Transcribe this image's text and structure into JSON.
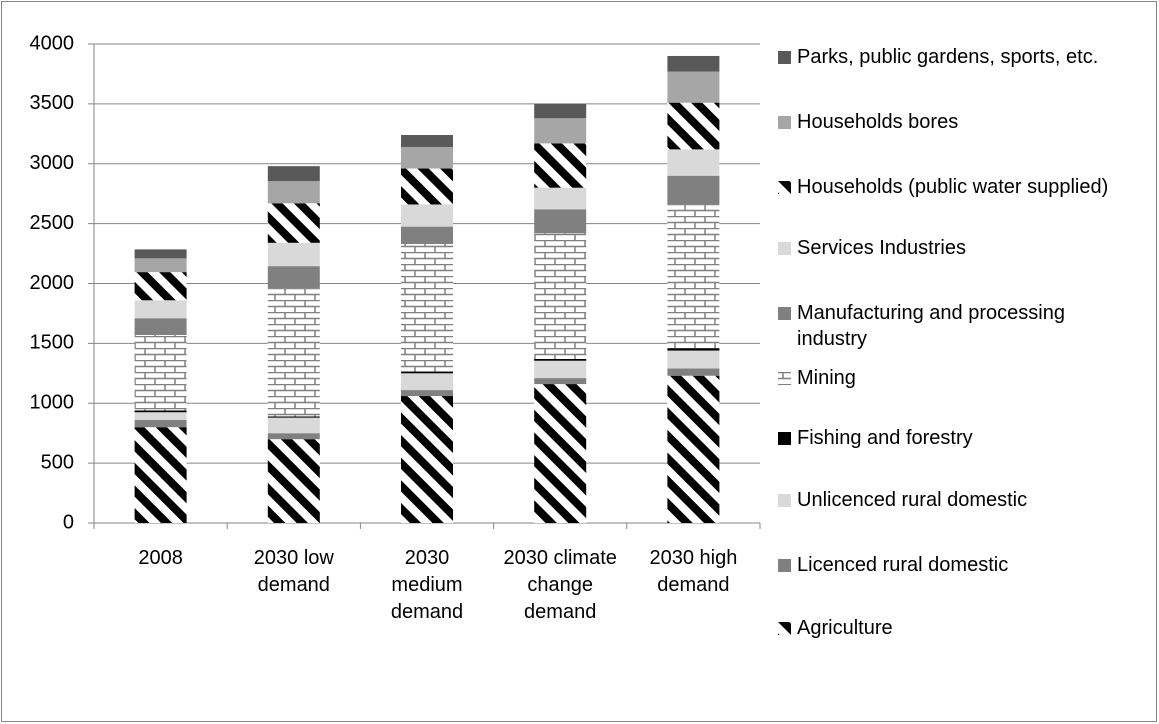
{
  "chart_data": {
    "type": "stacked-bar",
    "categories": [
      "2008",
      "2030 low demand",
      "2030 medium demand",
      "2030 climate change demand",
      "2030 high demand"
    ],
    "ylim": [
      0,
      4000
    ],
    "yticks": [
      0,
      500,
      1000,
      1500,
      2000,
      2500,
      3000,
      3500,
      4000
    ],
    "grid": true,
    "legend": "right",
    "series": [
      {
        "name": "Agriculture",
        "color": "#000000",
        "pattern": "diagonal",
        "values": [
          800,
          700,
          1060,
          1160,
          1230
        ]
      },
      {
        "name": "Licenced rural domestic",
        "color": "#808080",
        "values": [
          60,
          50,
          50,
          50,
          60
        ]
      },
      {
        "name": "Unlicenced rural domestic",
        "color": "#d9d9d9",
        "values": [
          65,
          130,
          140,
          145,
          150
        ]
      },
      {
        "name": "Fishing and forestry",
        "color": "#000000",
        "values": [
          15,
          10,
          15,
          15,
          20
        ]
      },
      {
        "name": "Mining",
        "color": "#808080",
        "pattern": "brick",
        "values": [
          630,
          1065,
          1065,
          1050,
          1200
        ]
      },
      {
        "name": "Manufacturing and processing industry",
        "color": "#808080",
        "values": [
          140,
          190,
          145,
          200,
          240
        ]
      },
      {
        "name": "Services Industries",
        "color": "#d9d9d9",
        "values": [
          150,
          195,
          185,
          180,
          220
        ]
      },
      {
        "name": "Households (public water supplied)",
        "color": "#000000",
        "pattern": "diagonal",
        "values": [
          235,
          330,
          300,
          370,
          390
        ]
      },
      {
        "name": "Households bores",
        "color": "#a6a6a6",
        "values": [
          115,
          185,
          180,
          210,
          260
        ]
      },
      {
        "name": "Parks, public gardens, sports, etc.",
        "color": "#595959",
        "values": [
          75,
          125,
          100,
          120,
          130
        ]
      }
    ]
  }
}
